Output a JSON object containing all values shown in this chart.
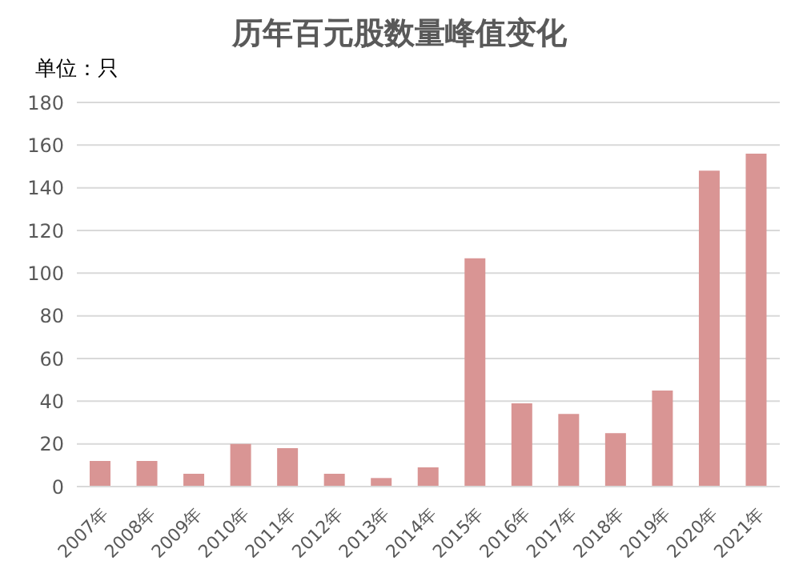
{
  "chart_data": {
    "type": "bar",
    "title": "历年百元股数量峰值变化",
    "ylabel": "单位：只",
    "categories": [
      "2007年",
      "2008年",
      "2009年",
      "2010年",
      "2011年",
      "2012年",
      "2013年",
      "2014年",
      "2015年",
      "2016年",
      "2017年",
      "2018年",
      "2019年",
      "2020年",
      "2021年"
    ],
    "values": [
      12,
      12,
      6,
      20,
      18,
      6,
      4,
      9,
      107,
      39,
      34,
      25,
      45,
      148,
      156
    ],
    "color": "#d99594",
    "ylim": [
      0,
      180
    ],
    "yticks": [
      0,
      20,
      40,
      60,
      80,
      100,
      120,
      140,
      160,
      180
    ],
    "grid": "y"
  }
}
